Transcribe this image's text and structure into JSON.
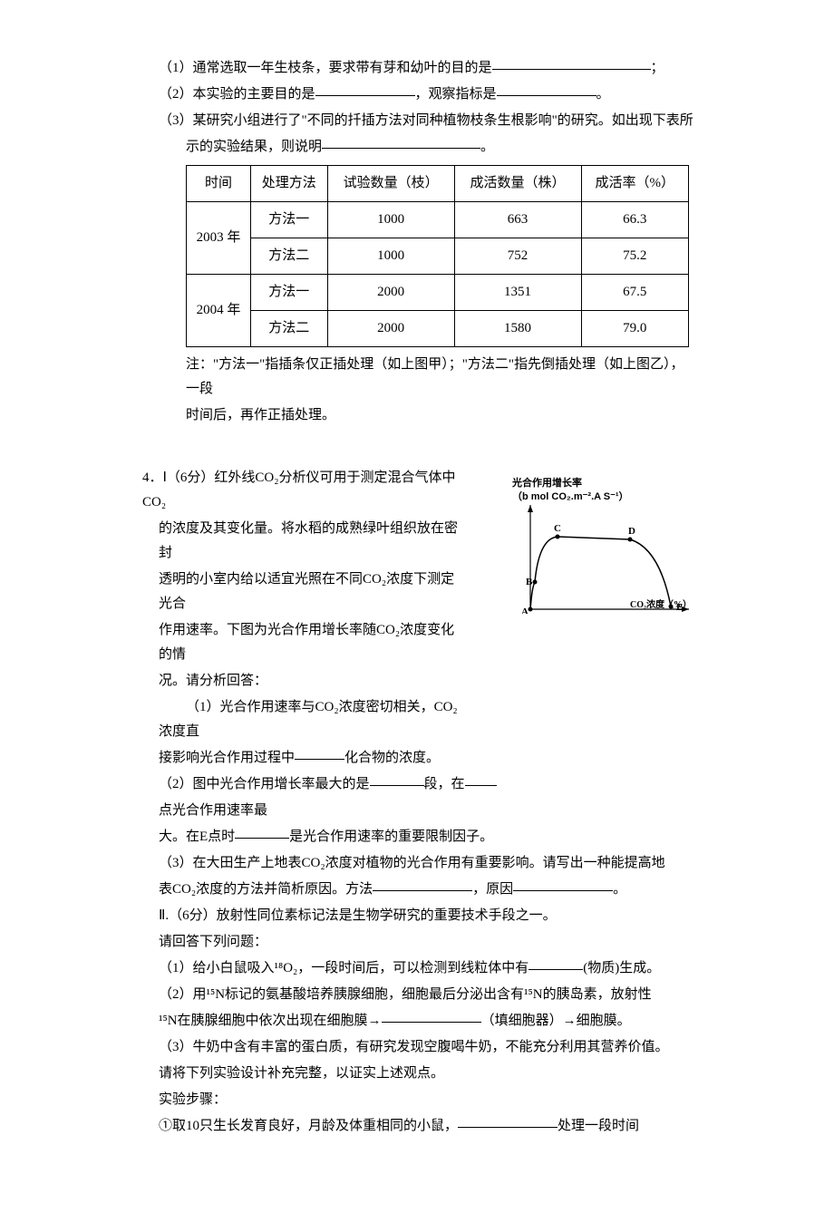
{
  "q3": {
    "p1": "（1）通常选取一年生枝条，要求带有芽和幼叶的目的是",
    "p1_tail": "；",
    "p2a": "（2）本实验的主要目的是",
    "p2b": "，观察指标是",
    "p2_tail": "。",
    "p3a": "（3）某研究小组进行了\"不同的扦插方法对同种植物枝条生根影响\"的研究。如出现下表所",
    "p3b": "示的实验结果，则说明",
    "p3_tail": "。",
    "table": {
      "head": [
        "时间",
        "处理方法",
        "试验数量（枝）",
        "成活数量（株）",
        "成活率（%）"
      ],
      "rows": [
        {
          "year": "2003 年",
          "method": "方法一",
          "trial": "1000",
          "alive": "663",
          "rate": "66.3"
        },
        {
          "year": "",
          "method": "方法二",
          "trial": "1000",
          "alive": "752",
          "rate": "75.2"
        },
        {
          "year": "2004 年",
          "method": "方法一",
          "trial": "2000",
          "alive": "1351",
          "rate": "67.5"
        },
        {
          "year": "",
          "method": "方法二",
          "trial": "2000",
          "alive": "1580",
          "rate": "79.0"
        }
      ]
    },
    "note1": "注：\"方法一\"指插条仅正插处理（如上图甲）；\"方法二\"指先倒插处理（如上图乙），一段",
    "note2": "时间后，再作正插处理。"
  },
  "q4": {
    "header": "4．Ⅰ（6分）红外线CO₂分析仪可用于测定混合气体中CO₂",
    "l2": "的浓度及其变化量。将水稻的成熟绿叶组织放在密封",
    "l3": "透明的小室内给以适宜光照在不同CO₂浓度下测定光合",
    "l4": "作用速率。下图为光合作用增长率随CO₂浓度变化的情",
    "l5": "况。请分析回答：",
    "p1a": "（1）光合作用速率与CO₂浓度密切相关，CO₂浓度直",
    "p1b_pre": "接影响光合作用过程中",
    "p1b_post": "化合物的浓度。",
    "p2a_pre": "（2）图中光合作用增长率最大的是",
    "p2a_mid": "段，在",
    "p2b": "点光合作用速率最",
    "p2c_pre": "大。在E点时",
    "p2c_post": "是光合作用速率的重要限制因子。",
    "p3a": "（3）在大田生产上地表CO₂浓度对植物的光合作用有重要影响。请写出一种能提高地",
    "p3b_pre": "表CO₂浓度的方法并简析原因。方法",
    "p3b_mid": "，原因",
    "p3b_tail": "。",
    "part2_header": "Ⅱ.（6分）放射性同位素标记法是生物学研究的重要技术手段之一。",
    "part2_sub": "请回答下列问题：",
    "pp1_pre": "（1）给小白鼠吸入¹⁸O₂，一段时间后，可以检测到线粒体中有",
    "pp1_post": "(物质)生成。",
    "pp2a": "（2）用¹⁵N标记的氨基酸培养胰腺细胞，细胞最后分泌出含有¹⁵N的胰岛素，放射性",
    "pp2b_pre": "¹⁵N在胰腺细胞中依次出现在细胞膜→",
    "pp2b_post": "（填细胞器）→细胞膜。",
    "pp3a": "（3）牛奶中含有丰富的蛋白质，有研究发现空腹喝牛奶，不能充分利用其营养价值。",
    "pp3b": "请将下列实验设计补充完整，以证实上述观点。",
    "steps_label": "实验步骤：",
    "step1_pre": "①取10只生长发育良好，月龄及体重相同的小鼠，",
    "step1_post": "处理一段时间",
    "chart": {
      "title1": "光合作用增长率",
      "title2": "（b mol CO₂.m⁻².A S⁻¹）",
      "xlabel": "CO₂浓度（%）",
      "points": {
        "A": [
          20,
          115
        ],
        "B": [
          25,
          85
        ],
        "C": [
          50,
          35
        ],
        "D": [
          130,
          38
        ],
        "E": [
          175,
          112
        ]
      },
      "line_color": "#000",
      "axis_color": "#000"
    }
  }
}
